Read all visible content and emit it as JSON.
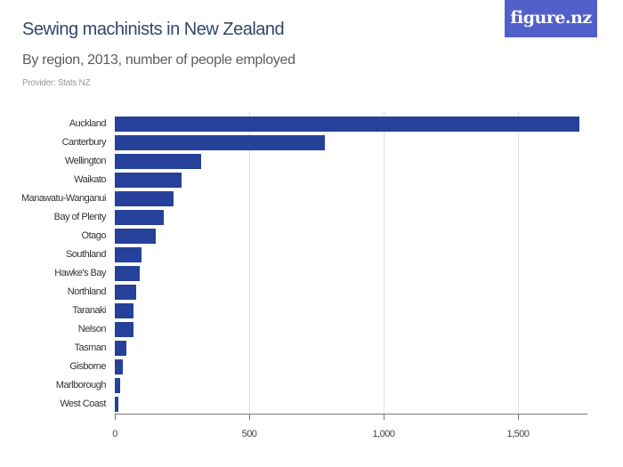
{
  "header": {
    "title": "Sewing machinists in New Zealand",
    "subtitle": "By region, 2013, number of people employed",
    "provider": "Provider: Stats NZ",
    "logo": "figure.nz"
  },
  "colors": {
    "bar": "#26419a",
    "logo_bg": "#5160c9",
    "title": "#34476a"
  },
  "chart_data": {
    "type": "bar",
    "orientation": "horizontal",
    "title": "Sewing machinists in New Zealand",
    "subtitle": "By region, 2013, number of people employed",
    "xlabel": "",
    "ylabel": "",
    "xlim": [
      0,
      1760
    ],
    "xticks": [
      0,
      500,
      1000,
      1500
    ],
    "xtick_labels": [
      "0",
      "500",
      "1,000",
      "1,500"
    ],
    "grid": true,
    "categories": [
      "Auckland",
      "Canterbury",
      "Wellington",
      "Waikato",
      "Manawatu-Wanganui",
      "Bay of Plenty",
      "Otago",
      "Southland",
      "Hawke's Bay",
      "Northland",
      "Taranaki",
      "Nelson",
      "Tasman",
      "Gisborne",
      "Marlborough",
      "West Coast"
    ],
    "values": [
      1728,
      781,
      321,
      248,
      218,
      182,
      152,
      99,
      93,
      80,
      70,
      70,
      43,
      30,
      20,
      13
    ]
  }
}
